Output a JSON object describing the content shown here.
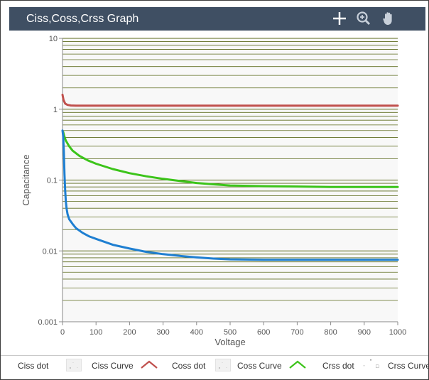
{
  "window": {
    "title": "Ciss,Coss,Crss  Graph",
    "tools": [
      {
        "name": "crosshair-icon",
        "icon": "crosshair"
      },
      {
        "name": "zoom-icon",
        "icon": "magnifier-plus"
      },
      {
        "name": "pan-icon",
        "icon": "hand"
      }
    ]
  },
  "chart_data": {
    "type": "line",
    "title": "",
    "xlabel": "Voltage",
    "ylabel": "Capacitance",
    "xlim": [
      0,
      1000
    ],
    "ylim": [
      0.001,
      10
    ],
    "yscale": "log",
    "x_ticks": [
      "0",
      "100",
      "200",
      "300",
      "400",
      "500",
      "600",
      "700",
      "800",
      "900",
      "1000"
    ],
    "y_ticks": [
      "0.001",
      "0.01",
      "0.1",
      "1",
      "10"
    ],
    "grid": true,
    "legend_position": "bottom",
    "series": [
      {
        "name": "Ciss Curve",
        "color": "#c0504d",
        "x": [
          0,
          3,
          8,
          15,
          25,
          40,
          60,
          100,
          200,
          300,
          400,
          500,
          600,
          700,
          800,
          900,
          1000
        ],
        "y": [
          1.6,
          1.35,
          1.2,
          1.15,
          1.13,
          1.12,
          1.12,
          1.12,
          1.12,
          1.12,
          1.12,
          1.12,
          1.12,
          1.12,
          1.12,
          1.12,
          1.12
        ]
      },
      {
        "name": "Coss Curve",
        "color": "#3cc41a",
        "x": [
          2,
          5,
          10,
          20,
          30,
          50,
          75,
          100,
          150,
          200,
          250,
          300,
          350,
          400,
          450,
          500,
          600,
          700,
          800,
          900,
          1000
        ],
        "y": [
          0.48,
          0.42,
          0.36,
          0.3,
          0.26,
          0.22,
          0.19,
          0.17,
          0.143,
          0.125,
          0.113,
          0.104,
          0.097,
          0.091,
          0.087,
          0.084,
          0.082,
          0.081,
          0.08,
          0.08,
          0.08
        ]
      },
      {
        "name": "Crss Curve",
        "color": "#1f7fd1",
        "x": [
          0,
          2,
          4,
          6,
          8,
          10,
          12,
          15,
          20,
          30,
          40,
          60,
          80,
          100,
          150,
          200,
          250,
          300,
          350,
          400,
          450,
          500,
          600,
          700,
          800,
          900,
          1000
        ],
        "y": [
          0.5,
          0.42,
          0.25,
          0.12,
          0.07,
          0.05,
          0.04,
          0.033,
          0.028,
          0.024,
          0.021,
          0.018,
          0.016,
          0.0148,
          0.0122,
          0.0108,
          0.0097,
          0.009,
          0.0085,
          0.0081,
          0.0078,
          0.0076,
          0.0075,
          0.0075,
          0.0075,
          0.0075,
          0.0075
        ]
      }
    ]
  },
  "legend": [
    {
      "label": "Ciss dot",
      "symbol": "dot",
      "color": "#c0504d"
    },
    {
      "label": "Ciss Curve",
      "symbol": "curve",
      "color": "#c0504d"
    },
    {
      "label": "Coss dot",
      "symbol": "dot",
      "color": "#3cc41a"
    },
    {
      "label": "Coss Curve",
      "symbol": "curve",
      "color": "#3cc41a"
    },
    {
      "label": "Crss dot",
      "symbol": "dot",
      "color": "#1f7fd1"
    },
    {
      "label": "Crss Curve",
      "symbol": "curve",
      "color": "#1f7fd1"
    }
  ]
}
